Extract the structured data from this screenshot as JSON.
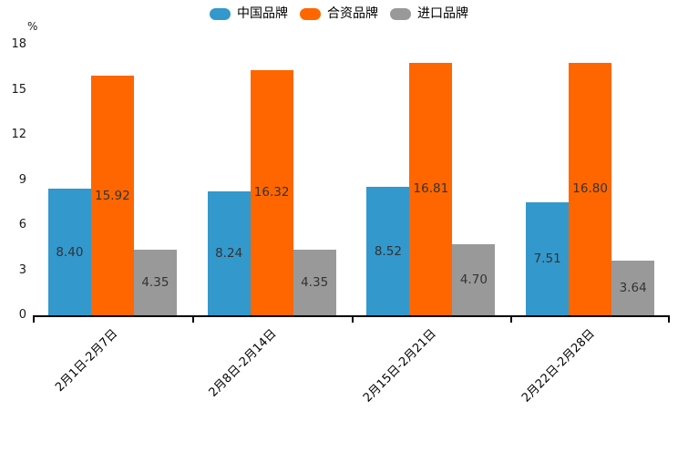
{
  "chart_data": {
    "type": "bar",
    "title": "",
    "xlabel": "",
    "ylabel": "%",
    "unit_label": "%",
    "categories": [
      "2月1日-2月7日",
      "2月8日-2月14日",
      "2月15日-2月21日",
      "2月22日-2月28日"
    ],
    "series": [
      {
        "name": "中国品牌",
        "color": "#3398CC",
        "values": [
          8.4,
          8.24,
          8.52,
          7.51
        ]
      },
      {
        "name": "合资品牌",
        "color": "#FF6600",
        "values": [
          15.92,
          16.32,
          16.81,
          16.8
        ]
      },
      {
        "name": "进口品牌",
        "color": "#999999",
        "values": [
          4.35,
          4.35,
          4.7,
          3.64
        ]
      }
    ],
    "value_label_decimals": 2,
    "value_label_color": "#333333",
    "y_ticks": [
      0,
      3,
      6,
      9,
      12,
      15,
      18
    ],
    "ylim": [
      0,
      18
    ],
    "grid": false,
    "legend_position": "top",
    "axis_color": "#000000",
    "background_color": "#ffffff"
  }
}
